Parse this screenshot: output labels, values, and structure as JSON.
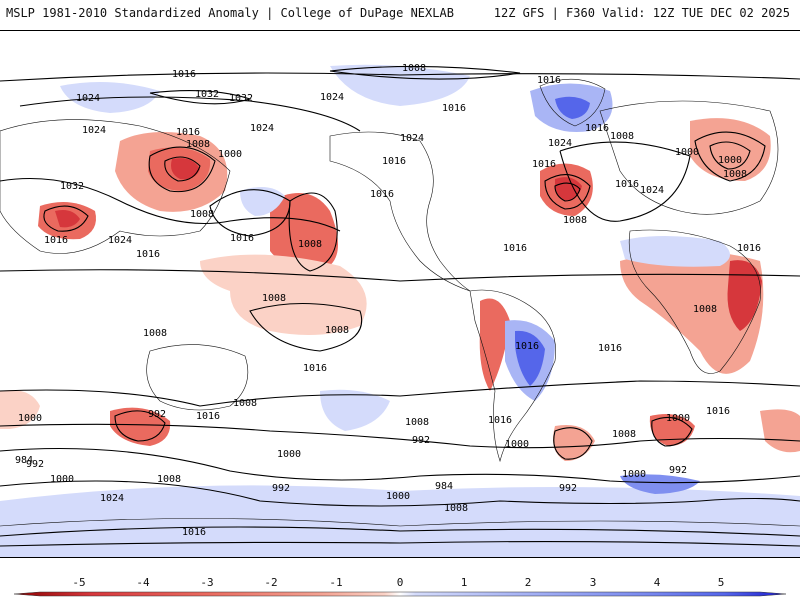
{
  "header": {
    "left_title": "MSLP 1981-2010 Standardized Anomaly | College of DuPage NEXLAB",
    "right_title": "12Z GFS | F360 Valid: 12Z TUE DEC 02 2025"
  },
  "colors": {
    "neg5": "#b2182b",
    "neg4": "#d6373c",
    "neg3": "#ea6a5f",
    "neg2": "#f4a393",
    "neg1": "#fbd2c6",
    "zero": "#ffffff",
    "pos1": "#d4dbfb",
    "pos2": "#a9b5f5",
    "pos3": "#7f8ff0",
    "pos4": "#5566ea",
    "pos5": "#2036e0",
    "contour": "#000000",
    "coast": "#111111"
  },
  "colorbar": {
    "ticks": [
      "-5",
      "-4",
      "-3",
      "-2",
      "-1",
      "0",
      "1",
      "2",
      "3",
      "4",
      "5"
    ]
  },
  "isobar_labels": [
    "1016",
    "1008",
    "1016",
    "1024",
    "1032",
    "1032",
    "1024",
    "1024",
    "1016",
    "1008",
    "1000",
    "1024",
    "1016",
    "1016",
    "1024",
    "1032",
    "1016",
    "1024",
    "1008",
    "1016",
    "1008",
    "1016",
    "1016",
    "1024",
    "1016",
    "1008",
    "1016",
    "1016",
    "1000",
    "1000",
    "1008",
    "1024",
    "1016",
    "1008",
    "1008",
    "1016",
    "1008",
    "1008",
    "1016",
    "1008",
    "1016",
    "1000",
    "992",
    "1016",
    "1008",
    "984",
    "992",
    "1000",
    "1008",
    "1024",
    "1016",
    "1008",
    "992",
    "1000",
    "1000",
    "984",
    "1000",
    "992",
    "1008",
    "1016",
    "1016",
    "1008",
    "1000",
    "992",
    "1016",
    "992",
    "1000"
  ],
  "legend_title": ""
}
